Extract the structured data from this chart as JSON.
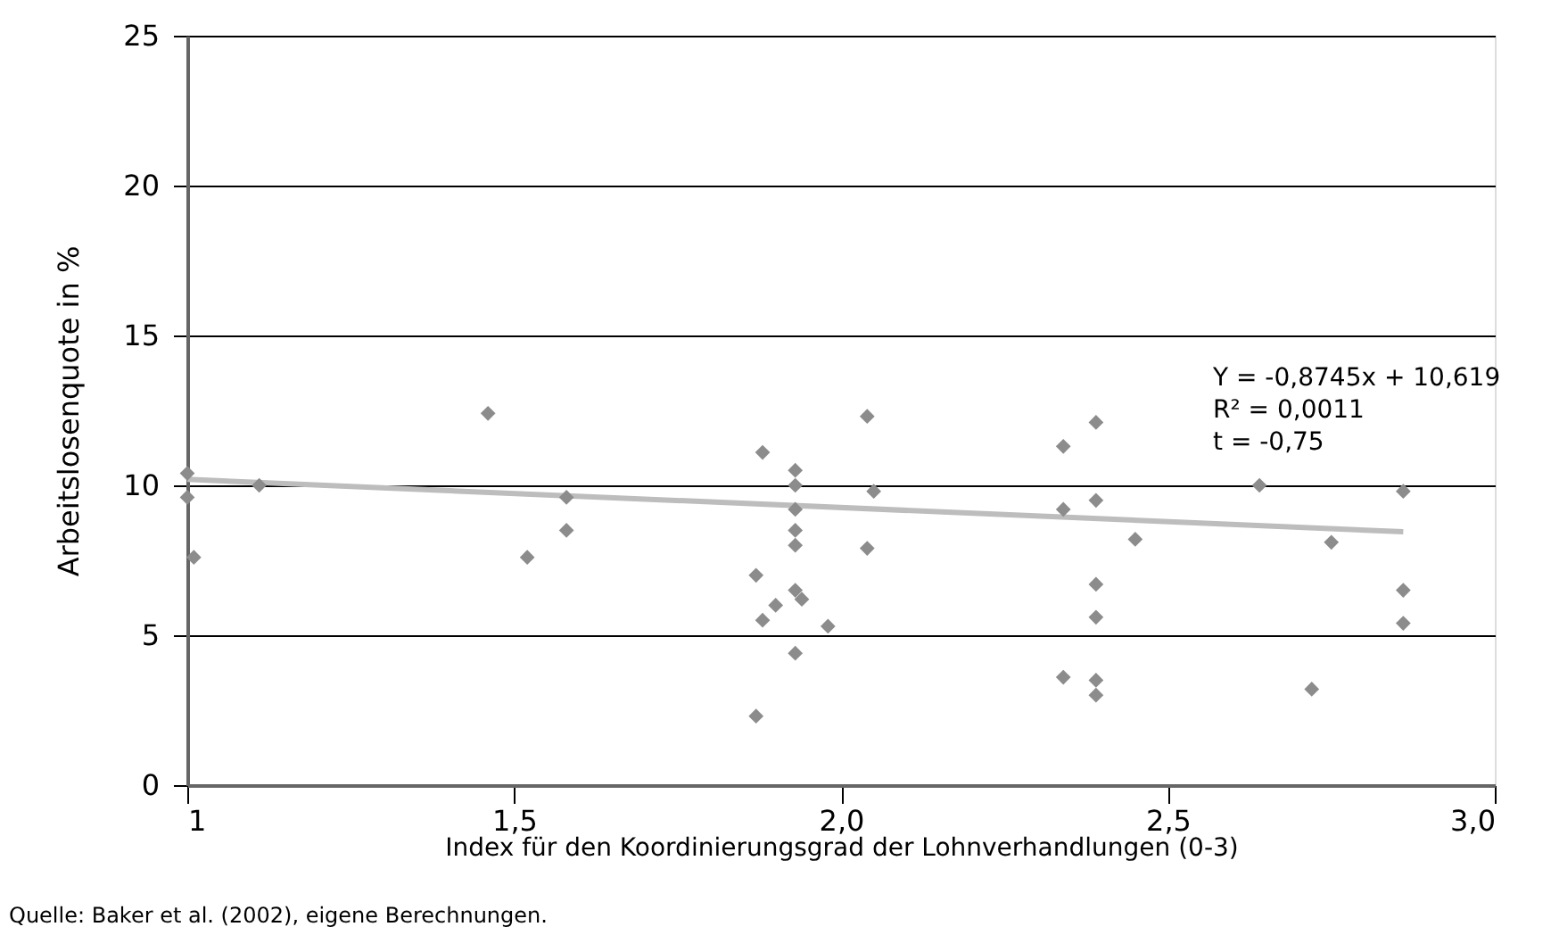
{
  "chart_data": {
    "type": "scatter",
    "xlabel": "Index für den Koordinierungsgrad der Lohnverhandlungen (0-3)",
    "ylabel": "Arbeitslosenquote in %",
    "xlim": [
      1,
      3.0
    ],
    "ylim": [
      0,
      25
    ],
    "xticks": [
      1,
      {
        "value": 1.5,
        "label": "1,5"
      },
      {
        "value": 2.0,
        "label": "2,0"
      },
      {
        "value": 2.5,
        "label": "2,5"
      },
      {
        "value": 3.0,
        "label": "3,0"
      }
    ],
    "yticks": [
      0,
      5,
      10,
      15,
      20,
      25
    ],
    "grid": "y",
    "marker": "diamond",
    "series": [
      {
        "color": "#8c8c8c",
        "x": [
          1.0,
          1.0,
          1.01,
          1.11,
          1.46,
          1.52,
          1.58,
          1.58,
          1.88,
          1.87,
          1.88,
          1.87,
          1.9,
          1.93,
          1.93,
          1.93,
          1.93,
          1.93,
          1.93,
          1.94,
          1.93,
          1.98,
          2.04,
          2.05,
          2.04,
          2.34,
          2.34,
          2.34,
          2.39,
          2.39,
          2.39,
          2.39,
          2.39,
          2.39,
          2.45,
          2.64,
          2.72,
          2.75,
          2.86,
          2.86,
          2.86
        ],
        "values": [
          10.4,
          9.6,
          7.6,
          10.0,
          12.4,
          7.6,
          9.6,
          8.5,
          11.1,
          7.0,
          5.5,
          2.3,
          6.0,
          10.5,
          10.0,
          9.2,
          8.5,
          8.0,
          6.5,
          6.2,
          4.4,
          5.3,
          12.3,
          9.8,
          7.9,
          11.3,
          9.2,
          3.6,
          12.1,
          9.5,
          6.7,
          5.6,
          3.5,
          3.0,
          8.2,
          10.0,
          3.2,
          8.1,
          9.8,
          6.5,
          5.4
        ]
      },
      {
        "type": "line",
        "color": "#bdbdbd",
        "marker": "none",
        "line_style": "solid",
        "x": [
          1.0,
          2.86
        ],
        "values": [
          10.2,
          8.45
        ]
      }
    ],
    "annotations": [
      "Y = -0,8745x + 10,619",
      "R² = 0,0011",
      "t = -0,75",
      "Quelle: Baker et al. (2002), eigene Berechnungen."
    ]
  }
}
